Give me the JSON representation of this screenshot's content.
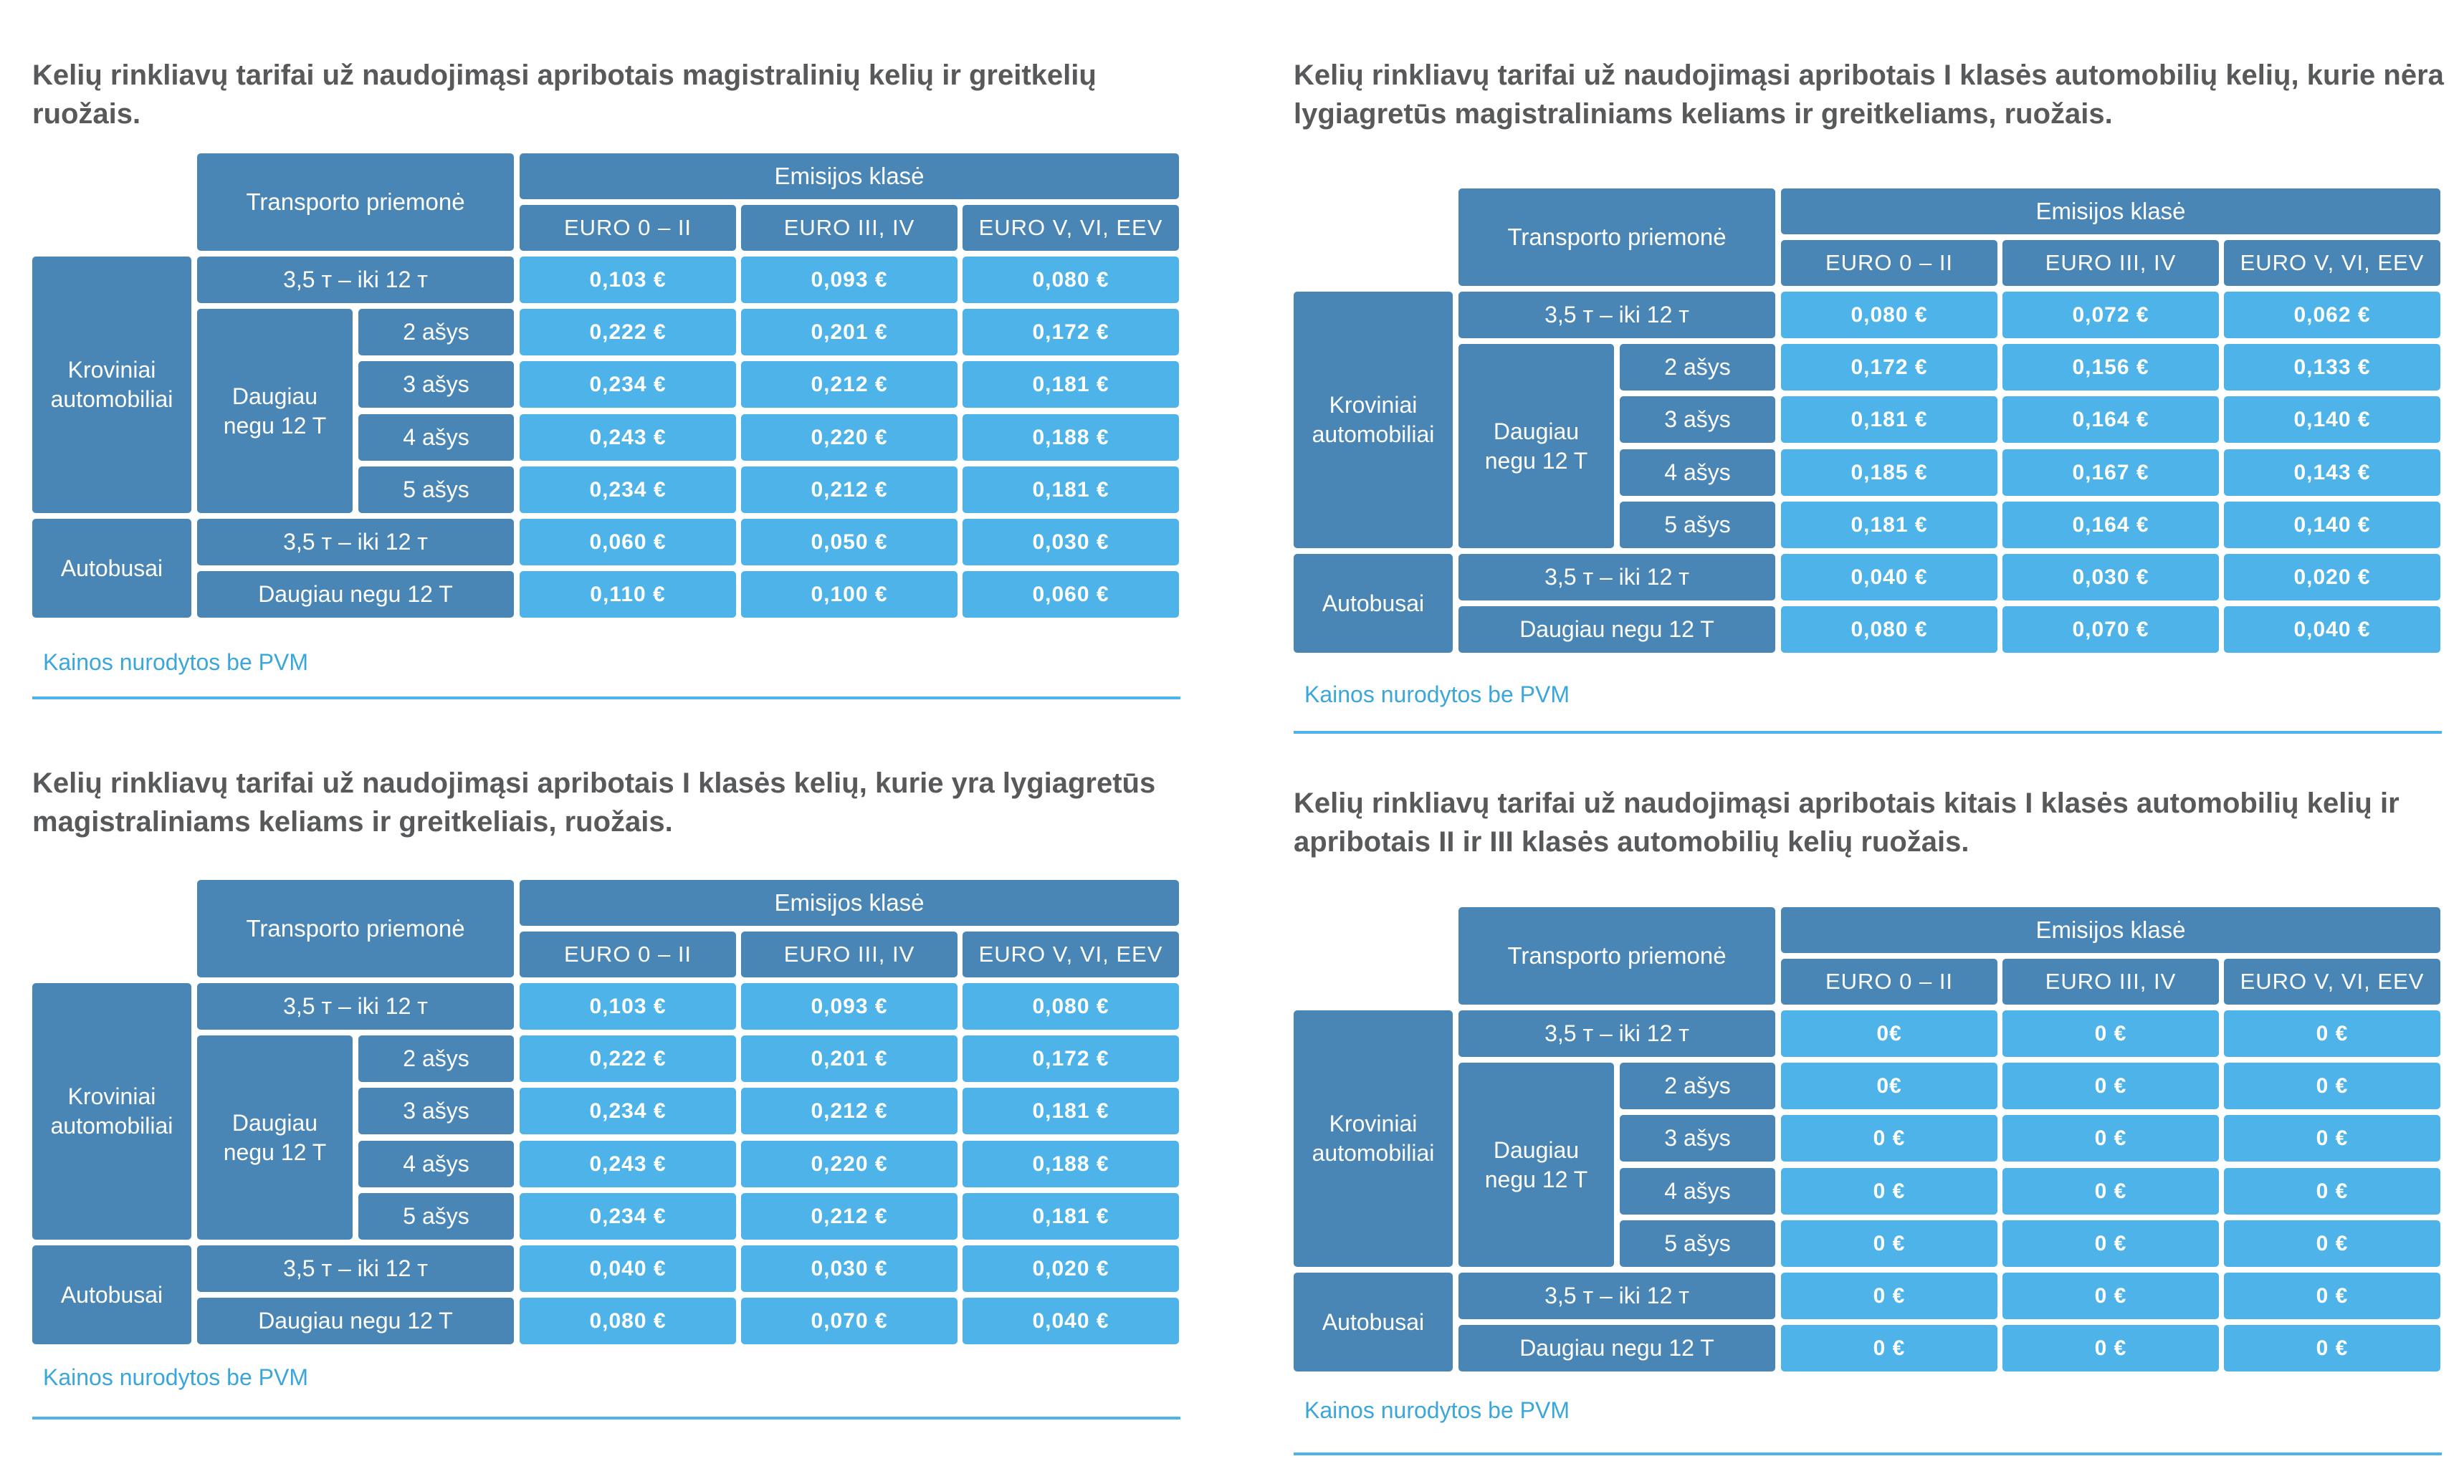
{
  "colors": {
    "title": "#58595b",
    "header": "#4a86b5",
    "value": "#4db3e8",
    "note": "#3aa6dc"
  },
  "tables": [
    {
      "title": "Kelių rinkliavų tarifai už naudojimąsi apribotais magistralinių kelių ir greitkelių\nruožais.",
      "transport_header": "Transporto priemonė",
      "emission_header": "Emisijos klasė",
      "classes": [
        "EURO 0 – II",
        "EURO III, IV",
        "EURO V, VI, EEV"
      ],
      "truck_label": "Kroviniai\nautomobiliai",
      "heavy_label": "Daugiau\nnegu  12 T",
      "bus_label": "Autobusai",
      "rows": [
        {
          "label": "3,5 т – iki 12 т",
          "values": [
            "0,103 €",
            "0,093 €",
            "0,080 €"
          ]
        },
        {
          "label": "2 ašys",
          "values": [
            "0,222 €",
            "0,201 €",
            "0,172 €"
          ]
        },
        {
          "label": "3 ašys",
          "values": [
            "0,234 €",
            "0,212 €",
            "0,181 €"
          ]
        },
        {
          "label": "4 ašys",
          "values": [
            "0,243 €",
            "0,220 €",
            "0,188 €"
          ]
        },
        {
          "label": "5 ašys",
          "values": [
            "0,234 €",
            "0,212 €",
            "0,181 €"
          ]
        },
        {
          "label": "3,5 т – iki 12 т",
          "values": [
            "0,060 €",
            "0,050 €",
            "0,030 €"
          ]
        },
        {
          "label": "Daugiau negu  12 T",
          "values": [
            "0,110 €",
            "0,100 €",
            "0,060 €"
          ]
        }
      ],
      "note": "Kainos nurodytos be PVM"
    },
    {
      "title": "Kelių rinkliavų tarifai už naudojimąsi  apribotais I klasės automobilių kelių,\nkurie nėra lygiagretūs magistraliniams keliams ir greitkeliams, ruožais.",
      "transport_header": "Transporto priemonė",
      "emission_header": "Emisijos klasė",
      "classes": [
        "EURO 0 – II",
        "EURO III, IV",
        "EURO V, VI, EEV"
      ],
      "truck_label": "Kroviniai\nautomobiliai",
      "heavy_label": "Daugiau\nnegu  12 T",
      "bus_label": "Autobusai",
      "rows": [
        {
          "label": "3,5 т – iki 12 т",
          "values": [
            "0,080 €",
            "0,072 €",
            "0,062 €"
          ]
        },
        {
          "label": "2 ašys",
          "values": [
            "0,172 €",
            "0,156 €",
            "0,133 €"
          ]
        },
        {
          "label": "3 ašys",
          "values": [
            "0,181 €",
            "0,164 €",
            "0,140 €"
          ]
        },
        {
          "label": "4 ašys",
          "values": [
            "0,185 €",
            "0,167 €",
            "0,143 €"
          ]
        },
        {
          "label": "5 ašys",
          "values": [
            "0,181 €",
            "0,164 €",
            "0,140 €"
          ]
        },
        {
          "label": "3,5 т – iki 12 т",
          "values": [
            "0,040 €",
            "0,030 €",
            "0,020 €"
          ]
        },
        {
          "label": "Daugiau negu  12 T",
          "values": [
            "0,080 €",
            "0,070 €",
            "0,040 €"
          ]
        }
      ],
      "note": "Kainos nurodytos be PVM"
    },
    {
      "title": "Kelių rinkliavų tarifai už naudojimąsi apribotais I klasės kelių, kurie yra\nlygiagretūs magistraliniams keliams ir greitkeliais, ruožais.",
      "transport_header": "Transporto priemonė",
      "emission_header": "Emisijos klasė",
      "classes": [
        "EURO 0 – II",
        "EURO III, IV",
        "EURO V, VI, EEV"
      ],
      "truck_label": "Kroviniai\nautomobiliai",
      "heavy_label": "Daugiau\nnegu  12 T",
      "bus_label": "Autobusai",
      "rows": [
        {
          "label": "3,5 т – iki 12 т",
          "values": [
            "0,103 €",
            "0,093 €",
            "0,080 €"
          ]
        },
        {
          "label": "2 ašys",
          "values": [
            "0,222 €",
            "0,201 €",
            "0,172 €"
          ]
        },
        {
          "label": "3 ašys",
          "values": [
            "0,234 €",
            "0,212 €",
            "0,181 €"
          ]
        },
        {
          "label": "4 ašys",
          "values": [
            "0,243 €",
            "0,220 €",
            "0,188 €"
          ]
        },
        {
          "label": "5 ašys",
          "values": [
            "0,234 €",
            "0,212 €",
            "0,181 €"
          ]
        },
        {
          "label": "3,5 т – iki 12 т",
          "values": [
            "0,040 €",
            "0,030 €",
            "0,020 €"
          ]
        },
        {
          "label": "Daugiau negu  12 T",
          "values": [
            "0,080 €",
            "0,070 €",
            "0,040 €"
          ]
        }
      ],
      "note": "Kainos nurodytos be PVM"
    },
    {
      "title": "Kelių rinkliavų tarifai už naudojimąsi apribotais kitais I klasės automobilių kelių\nir apribotais II ir III klasės automobilių kelių ruožais.",
      "transport_header": "Transporto priemonė",
      "emission_header": "Emisijos klasė",
      "classes": [
        "EURO 0 – II",
        "EURO III, IV",
        "EURO V, VI, EEV"
      ],
      "truck_label": "Kroviniai\nautomobiliai",
      "heavy_label": "Daugiau\nnegu  12 T",
      "bus_label": "Autobusai",
      "rows": [
        {
          "label": "3,5 т – iki 12 т",
          "values": [
            "0€",
            "0 €",
            "0 €"
          ]
        },
        {
          "label": "2 ašys",
          "values": [
            "0€",
            "0 €",
            "0 €"
          ]
        },
        {
          "label": "3 ašys",
          "values": [
            "0 €",
            "0 €",
            "0 €"
          ]
        },
        {
          "label": "4 ašys",
          "values": [
            "0 €",
            "0 €",
            "0 €"
          ]
        },
        {
          "label": "5 ašys",
          "values": [
            "0 €",
            "0 €",
            "0 €"
          ]
        },
        {
          "label": "3,5 т – iki 12 т",
          "values": [
            "0 €",
            "0 €",
            "0 €"
          ]
        },
        {
          "label": "Daugiau negu  12 T",
          "values": [
            "0 €",
            "0 €",
            "0 €"
          ]
        }
      ],
      "note": "Kainos nurodytos be PVM"
    }
  ]
}
